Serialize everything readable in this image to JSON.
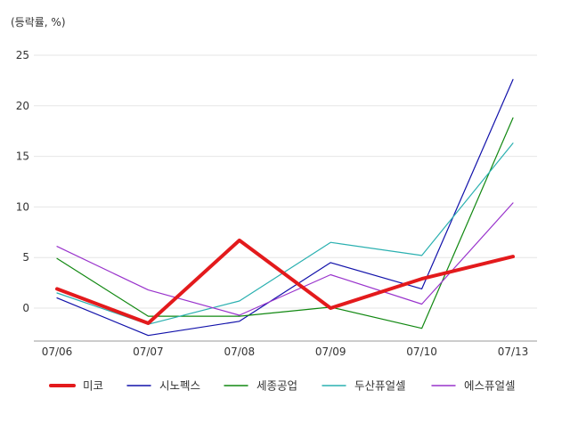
{
  "chart_data": {
    "type": "line",
    "title": "",
    "unit_label": "(등락률, %)",
    "categories": [
      "07/06",
      "07/07",
      "07/08",
      "07/09",
      "07/10",
      "07/13"
    ],
    "ylim": [
      -3.2,
      27
    ],
    "yticks": [
      0,
      5,
      10,
      15,
      20,
      25
    ],
    "grid": true,
    "legend_position": "bottom",
    "series": [
      {
        "name": "미코",
        "color": "#e31a1c",
        "width": 4,
        "values": [
          1.9,
          -1.5,
          6.7,
          0.0,
          2.9,
          5.1
        ]
      },
      {
        "name": "시노펙스",
        "color": "#1111aa",
        "width": 1.2,
        "values": [
          1.0,
          -2.7,
          -1.3,
          4.5,
          1.9,
          22.6
        ]
      },
      {
        "name": "세종공업",
        "color": "#118811",
        "width": 1.2,
        "values": [
          4.9,
          -0.8,
          -0.8,
          0.1,
          -2.0,
          18.8
        ]
      },
      {
        "name": "두산퓨얼셀",
        "color": "#2ab0b0",
        "width": 1.2,
        "values": [
          1.5,
          -1.6,
          0.7,
          6.5,
          5.2,
          16.3
        ]
      },
      {
        "name": "에스퓨얼셀",
        "color": "#9933cc",
        "width": 1.2,
        "values": [
          6.1,
          1.8,
          -0.7,
          3.3,
          0.4,
          10.4
        ]
      }
    ]
  }
}
